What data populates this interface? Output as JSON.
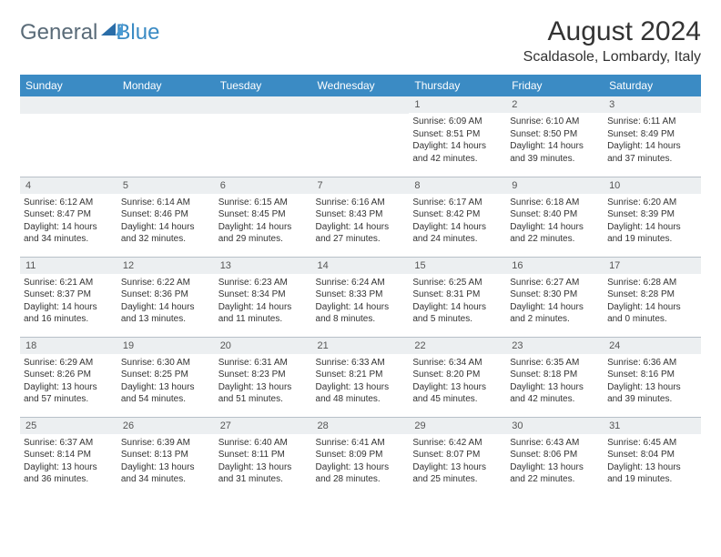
{
  "brand": {
    "word1": "General",
    "word2": "Blue"
  },
  "title": "August 2024",
  "location": "Scaldasole, Lombardy, Italy",
  "colors": {
    "header_bg": "#3b8bc4",
    "header_text": "#ffffff",
    "daynum_bg": "#eceff1",
    "border": "#b8c0c8",
    "brand_gray": "#5a6b78",
    "brand_blue": "#3b8bc4"
  },
  "weekdays": [
    "Sunday",
    "Monday",
    "Tuesday",
    "Wednesday",
    "Thursday",
    "Friday",
    "Saturday"
  ],
  "first_weekday_index": 4,
  "days": [
    {
      "n": 1,
      "sr": "6:09 AM",
      "ss": "8:51 PM",
      "dl": "14 hours and 42 minutes."
    },
    {
      "n": 2,
      "sr": "6:10 AM",
      "ss": "8:50 PM",
      "dl": "14 hours and 39 minutes."
    },
    {
      "n": 3,
      "sr": "6:11 AM",
      "ss": "8:49 PM",
      "dl": "14 hours and 37 minutes."
    },
    {
      "n": 4,
      "sr": "6:12 AM",
      "ss": "8:47 PM",
      "dl": "14 hours and 34 minutes."
    },
    {
      "n": 5,
      "sr": "6:14 AM",
      "ss": "8:46 PM",
      "dl": "14 hours and 32 minutes."
    },
    {
      "n": 6,
      "sr": "6:15 AM",
      "ss": "8:45 PM",
      "dl": "14 hours and 29 minutes."
    },
    {
      "n": 7,
      "sr": "6:16 AM",
      "ss": "8:43 PM",
      "dl": "14 hours and 27 minutes."
    },
    {
      "n": 8,
      "sr": "6:17 AM",
      "ss": "8:42 PM",
      "dl": "14 hours and 24 minutes."
    },
    {
      "n": 9,
      "sr": "6:18 AM",
      "ss": "8:40 PM",
      "dl": "14 hours and 22 minutes."
    },
    {
      "n": 10,
      "sr": "6:20 AM",
      "ss": "8:39 PM",
      "dl": "14 hours and 19 minutes."
    },
    {
      "n": 11,
      "sr": "6:21 AM",
      "ss": "8:37 PM",
      "dl": "14 hours and 16 minutes."
    },
    {
      "n": 12,
      "sr": "6:22 AM",
      "ss": "8:36 PM",
      "dl": "14 hours and 13 minutes."
    },
    {
      "n": 13,
      "sr": "6:23 AM",
      "ss": "8:34 PM",
      "dl": "14 hours and 11 minutes."
    },
    {
      "n": 14,
      "sr": "6:24 AM",
      "ss": "8:33 PM",
      "dl": "14 hours and 8 minutes."
    },
    {
      "n": 15,
      "sr": "6:25 AM",
      "ss": "8:31 PM",
      "dl": "14 hours and 5 minutes."
    },
    {
      "n": 16,
      "sr": "6:27 AM",
      "ss": "8:30 PM",
      "dl": "14 hours and 2 minutes."
    },
    {
      "n": 17,
      "sr": "6:28 AM",
      "ss": "8:28 PM",
      "dl": "14 hours and 0 minutes."
    },
    {
      "n": 18,
      "sr": "6:29 AM",
      "ss": "8:26 PM",
      "dl": "13 hours and 57 minutes."
    },
    {
      "n": 19,
      "sr": "6:30 AM",
      "ss": "8:25 PM",
      "dl": "13 hours and 54 minutes."
    },
    {
      "n": 20,
      "sr": "6:31 AM",
      "ss": "8:23 PM",
      "dl": "13 hours and 51 minutes."
    },
    {
      "n": 21,
      "sr": "6:33 AM",
      "ss": "8:21 PM",
      "dl": "13 hours and 48 minutes."
    },
    {
      "n": 22,
      "sr": "6:34 AM",
      "ss": "8:20 PM",
      "dl": "13 hours and 45 minutes."
    },
    {
      "n": 23,
      "sr": "6:35 AM",
      "ss": "8:18 PM",
      "dl": "13 hours and 42 minutes."
    },
    {
      "n": 24,
      "sr": "6:36 AM",
      "ss": "8:16 PM",
      "dl": "13 hours and 39 minutes."
    },
    {
      "n": 25,
      "sr": "6:37 AM",
      "ss": "8:14 PM",
      "dl": "13 hours and 36 minutes."
    },
    {
      "n": 26,
      "sr": "6:39 AM",
      "ss": "8:13 PM",
      "dl": "13 hours and 34 minutes."
    },
    {
      "n": 27,
      "sr": "6:40 AM",
      "ss": "8:11 PM",
      "dl": "13 hours and 31 minutes."
    },
    {
      "n": 28,
      "sr": "6:41 AM",
      "ss": "8:09 PM",
      "dl": "13 hours and 28 minutes."
    },
    {
      "n": 29,
      "sr": "6:42 AM",
      "ss": "8:07 PM",
      "dl": "13 hours and 25 minutes."
    },
    {
      "n": 30,
      "sr": "6:43 AM",
      "ss": "8:06 PM",
      "dl": "13 hours and 22 minutes."
    },
    {
      "n": 31,
      "sr": "6:45 AM",
      "ss": "8:04 PM",
      "dl": "13 hours and 19 minutes."
    }
  ],
  "labels": {
    "sunrise": "Sunrise:",
    "sunset": "Sunset:",
    "daylight": "Daylight:"
  }
}
